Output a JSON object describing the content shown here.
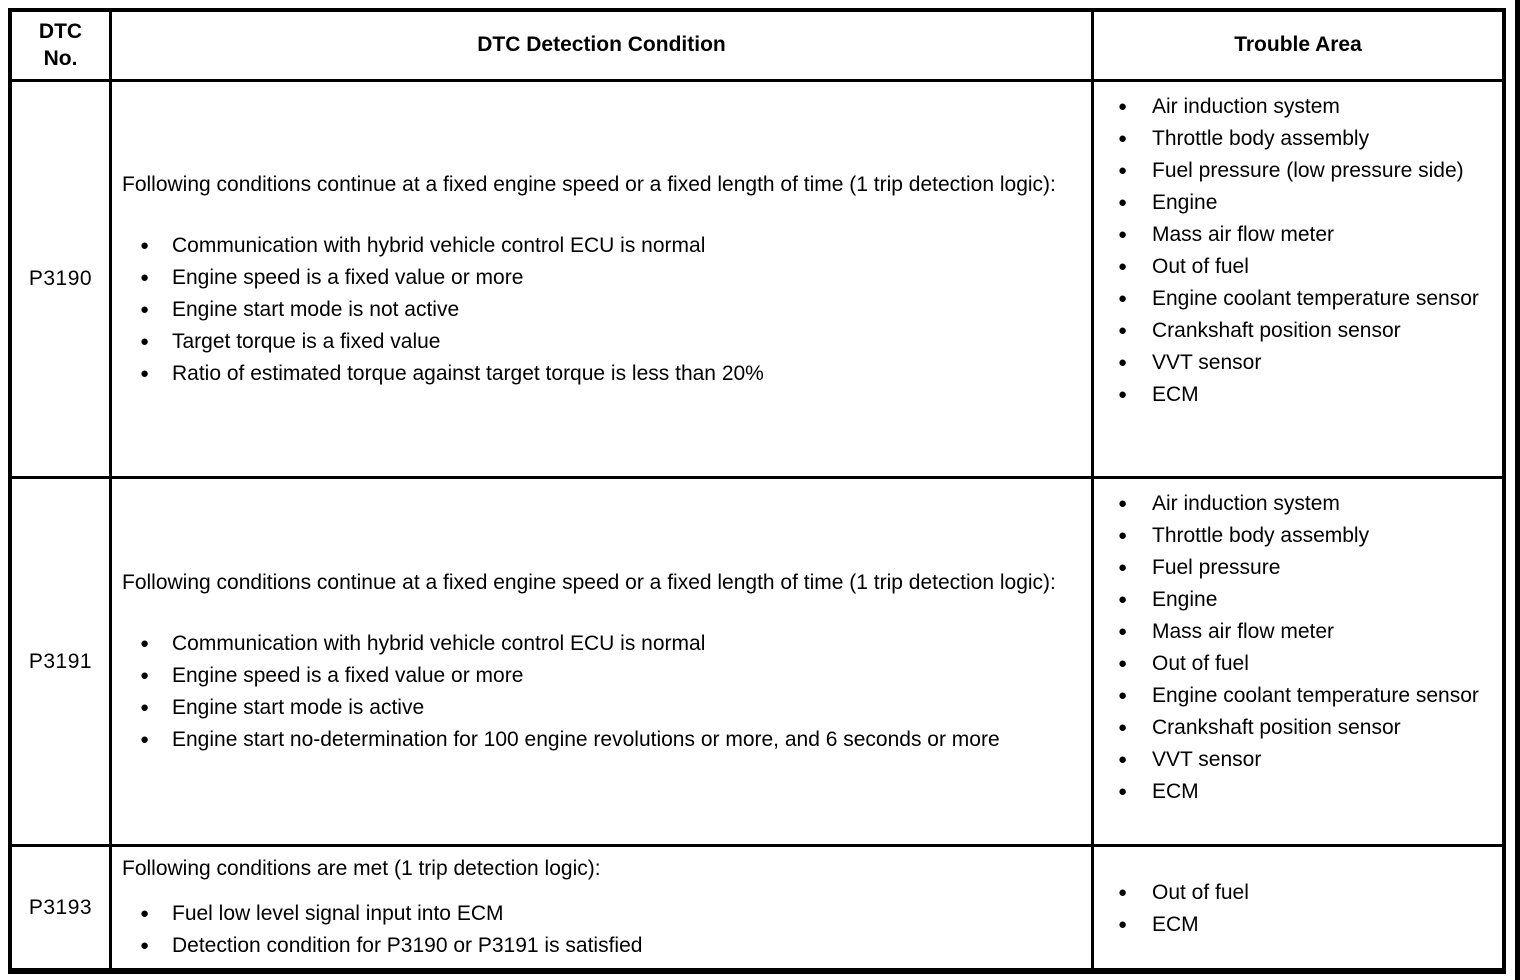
{
  "colors": {
    "border": "#000000",
    "background": "#ffffff",
    "text": "#000000"
  },
  "table": {
    "headers": {
      "dtc_no_line1": "DTC",
      "dtc_no_line2": "No.",
      "detection_condition": "DTC Detection Condition",
      "trouble_area": "Trouble Area"
    },
    "rows": [
      {
        "dtc": "P3190",
        "intro": "Following conditions continue at a fixed engine speed or a fixed length of time (1 trip detection logic):",
        "conditions": [
          "Communication with hybrid vehicle control ECU is normal",
          "Engine speed is a fixed value or more",
          "Engine start mode is not active",
          "Target torque is a fixed value",
          "Ratio of estimated torque against target torque is less than 20%"
        ],
        "trouble_areas": [
          "Air induction system",
          "Throttle body assembly",
          "Fuel pressure (low pressure side)",
          "Engine",
          "Mass air flow meter",
          "Out of fuel",
          "Engine coolant temperature sensor",
          "Crankshaft position sensor",
          "VVT sensor",
          "ECM"
        ]
      },
      {
        "dtc": "P3191",
        "intro": "Following conditions continue at a fixed engine speed or a fixed length of time (1 trip detection logic):",
        "conditions": [
          "Communication with hybrid vehicle control ECU is normal",
          "Engine speed is a fixed value or more",
          "Engine start mode is active",
          "Engine start no-determination for 100 engine revolutions or more, and 6 seconds or more"
        ],
        "trouble_areas": [
          "Air induction system",
          "Throttle body assembly",
          "Fuel pressure",
          "Engine",
          "Mass air flow meter",
          "Out of fuel",
          "Engine coolant temperature sensor",
          "Crankshaft position sensor",
          "VVT sensor",
          "ECM"
        ]
      },
      {
        "dtc": "P3193",
        "intro": "Following conditions are met (1 trip detection logic):",
        "conditions": [
          "Fuel low level signal input into ECM",
          "Detection condition for P3190 or P3191 is satisfied"
        ],
        "trouble_areas": [
          "Out of fuel",
          "ECM"
        ]
      }
    ]
  }
}
